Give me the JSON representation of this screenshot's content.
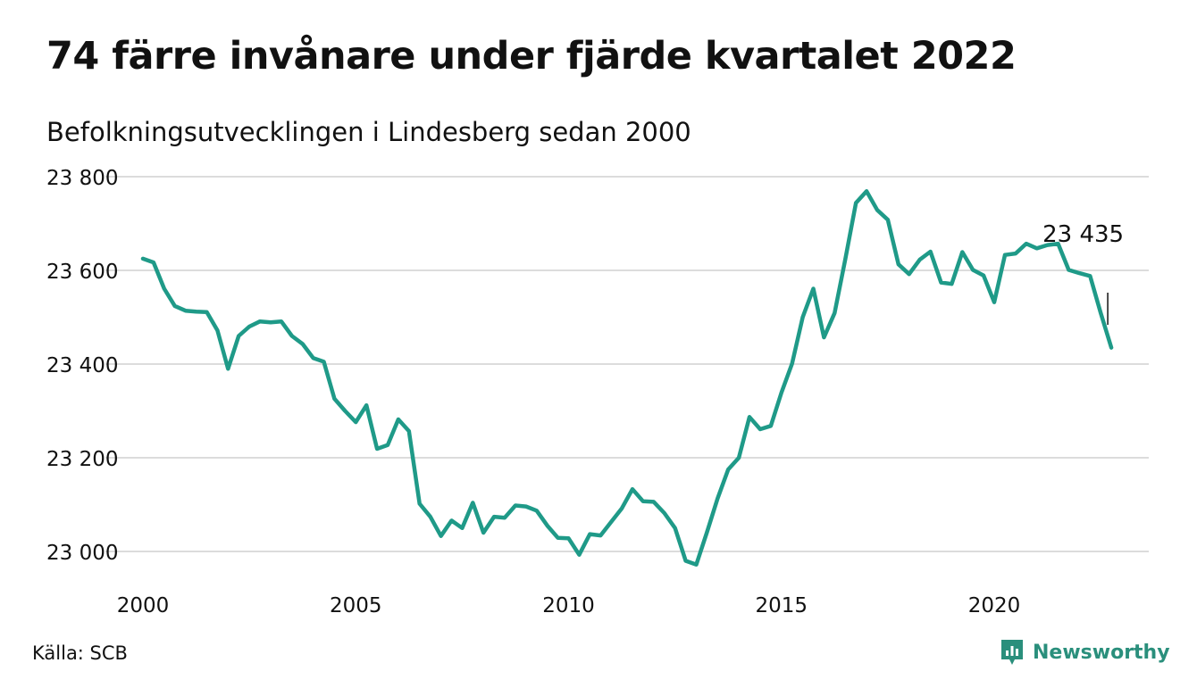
{
  "title": "74 färre invånare under fjärde kvartalet 2022",
  "subtitle": "Befolkningsutvecklingen i Lindesberg sedan 2000",
  "source": "Källa: SCB",
  "brand": {
    "name": "Newsworthy",
    "icon": "newsworthy-logo-icon",
    "color": "#2a8f7c"
  },
  "chart_data": {
    "type": "line",
    "title": "74 färre invånare under fjärde kvartalet 2022",
    "subtitle": "Befolkningsutvecklingen i Lindesberg sedan 2000",
    "xlabel": "",
    "ylabel": "",
    "xlim": [
      2000,
      2023
    ],
    "ylim": [
      22970,
      23830
    ],
    "x_ticks": [
      2000,
      2005,
      2010,
      2015,
      2020
    ],
    "x_tick_labels": [
      "2000",
      "2005",
      "2010",
      "2015",
      "2020"
    ],
    "y_ticks": [
      23000,
      23200,
      23400,
      23600,
      23800
    ],
    "y_tick_labels": [
      "23 000",
      "23 200",
      "23 400",
      "23 600",
      "23 800"
    ],
    "grid": "horizontal",
    "line_color": "#1f9a88",
    "annotation": {
      "label": "23 435",
      "x": 2022.75,
      "y": 23435
    },
    "series": [
      {
        "x": [
          2000.0,
          2000.25,
          2000.5,
          2000.75,
          2001.0,
          2001.25,
          2001.5,
          2001.75,
          2002.0,
          2002.25,
          2002.5,
          2002.75,
          2003.0,
          2003.25,
          2003.5,
          2003.75,
          2004.0,
          2004.25,
          2004.5,
          2004.75,
          2005.0,
          2005.25,
          2005.5,
          2005.75,
          2006.0,
          2006.25,
          2006.5,
          2006.75,
          2007.0,
          2007.25,
          2007.5,
          2007.75,
          2008.0,
          2008.25,
          2008.5,
          2008.75,
          2009.0,
          2009.25,
          2009.5,
          2009.75,
          2010.0,
          2010.25,
          2010.5,
          2010.75,
          2011.0,
          2011.25,
          2011.5,
          2011.75,
          2012.0,
          2012.25,
          2012.5,
          2012.75,
          2013.0,
          2013.25,
          2013.5,
          2013.75,
          2014.0,
          2014.25,
          2014.5,
          2014.75,
          2015.0,
          2015.25,
          2015.5,
          2015.75,
          2016.0,
          2016.25,
          2016.5,
          2016.75,
          2017.0,
          2017.25,
          2017.5,
          2017.75,
          2018.0,
          2018.25,
          2018.5,
          2018.75,
          2019.0,
          2019.25,
          2019.5,
          2019.75,
          2020.0,
          2020.25,
          2020.5,
          2020.75,
          2021.0,
          2021.25,
          2021.5,
          2021.75,
          2022.0,
          2022.25,
          2022.5,
          2022.75
        ],
        "values": [
          23625,
          23617,
          23561,
          23524,
          23514,
          23512,
          23511,
          23472,
          23390,
          23460,
          23480,
          23491,
          23489,
          23491,
          23460,
          23443,
          23413,
          23405,
          23326,
          23300,
          23276,
          23312,
          23219,
          23227,
          23282,
          23257,
          23102,
          23074,
          23033,
          23066,
          23050,
          23104,
          23040,
          23074,
          23072,
          23098,
          23096,
          23087,
          23055,
          23029,
          23028,
          22993,
          23037,
          23034,
          23063,
          23092,
          23133,
          23107,
          23106,
          23082,
          23050,
          22980,
          22972,
          23041,
          23113,
          23175,
          23200,
          23287,
          23261,
          23268,
          23339,
          23401,
          23500,
          23561,
          23457,
          23509,
          23624,
          23744,
          23769,
          23729,
          23708,
          23613,
          23592,
          23623,
          23640,
          23574,
          23571,
          23639,
          23601,
          23589,
          23532,
          23633,
          23636,
          23657,
          23647,
          23654,
          23657,
          23601,
          23594,
          23588,
          23509,
          23435
        ]
      }
    ]
  }
}
